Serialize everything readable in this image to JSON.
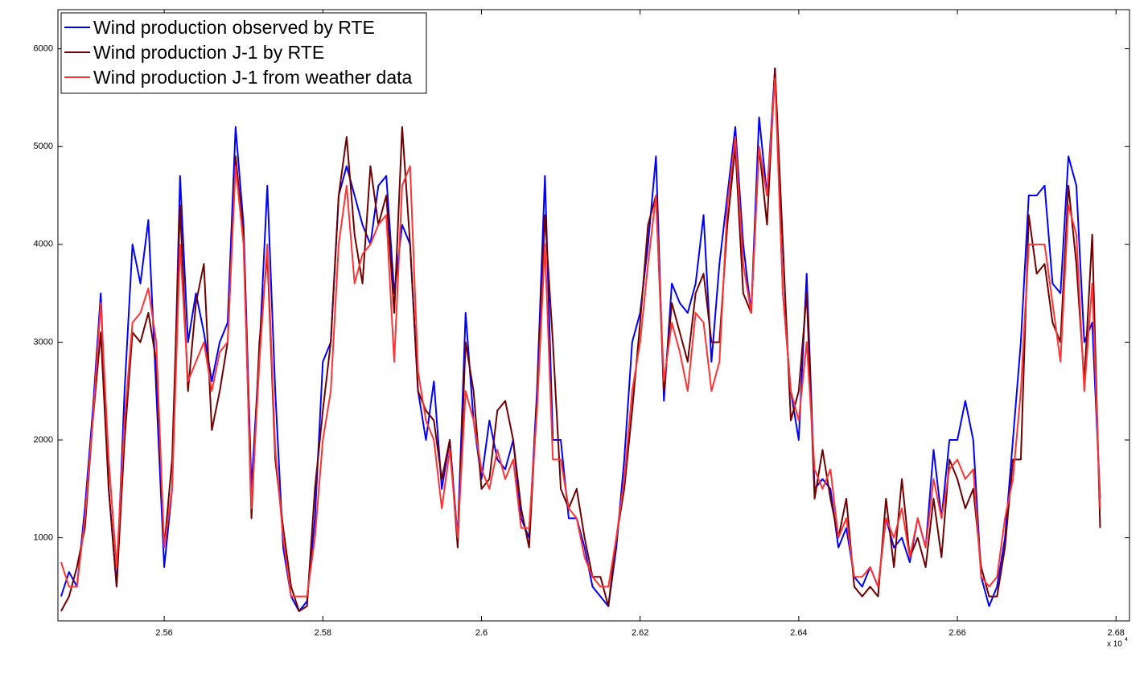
{
  "chart_data": {
    "type": "line",
    "x": [
      25470,
      25480,
      25490,
      25500,
      25510,
      25520,
      25530,
      25540,
      25550,
      25560,
      25570,
      25580,
      25590,
      25600,
      25610,
      25620,
      25630,
      25640,
      25650,
      25660,
      25670,
      25680,
      25690,
      25700,
      25710,
      25720,
      25730,
      25740,
      25750,
      25760,
      25770,
      25780,
      25790,
      25800,
      25810,
      25820,
      25830,
      25840,
      25850,
      25860,
      25870,
      25880,
      25890,
      25900,
      25910,
      25920,
      25930,
      25940,
      25950,
      25960,
      25970,
      25980,
      25990,
      26000,
      26010,
      26020,
      26030,
      26040,
      26050,
      26060,
      26070,
      26080,
      26090,
      26100,
      26110,
      26120,
      26130,
      26140,
      26150,
      26160,
      26170,
      26180,
      26190,
      26200,
      26210,
      26220,
      26230,
      26240,
      26250,
      26260,
      26270,
      26280,
      26290,
      26300,
      26310,
      26320,
      26330,
      26340,
      26350,
      26360,
      26370,
      26380,
      26390,
      26400,
      26410,
      26420,
      26430,
      26440,
      26450,
      26460,
      26470,
      26480,
      26490,
      26500,
      26510,
      26520,
      26530,
      26540,
      26550,
      26560,
      26570,
      26580,
      26590,
      26600,
      26610,
      26620,
      26630,
      26640,
      26650,
      26660,
      26670,
      26680,
      26690,
      26700,
      26710,
      26720,
      26730,
      26740,
      26750,
      26760,
      26770,
      26780
    ],
    "series": [
      {
        "name": "Wind production observed by RTE",
        "color": "#0000ff",
        "values": [
          400,
          650,
          500,
          1300,
          2300,
          3500,
          1500,
          500,
          2500,
          4000,
          3600,
          4250,
          2500,
          700,
          1500,
          4700,
          3000,
          3500,
          3100,
          2600,
          3000,
          3200,
          5200,
          4200,
          1500,
          2900,
          4600,
          2500,
          900,
          400,
          250,
          350,
          1200,
          2800,
          3000,
          4500,
          4800,
          4500,
          4200,
          4000,
          4600,
          4700,
          3500,
          4200,
          4000,
          2500,
          2000,
          2600,
          1500,
          2000,
          1000,
          3300,
          2200,
          1600,
          2200,
          1800,
          1700,
          2000,
          1200,
          1000,
          2500,
          4700,
          2000,
          2000,
          1200,
          1200,
          900,
          500,
          400,
          300,
          900,
          1800,
          3000,
          3300,
          4000,
          4900,
          2400,
          3600,
          3400,
          3300,
          3600,
          4300,
          2800,
          3800,
          4500,
          5200,
          4000,
          3300,
          5300,
          4500,
          5800,
          3500,
          2500,
          2000,
          3700,
          1500,
          1600,
          1500,
          900,
          1100,
          600,
          500,
          700,
          500,
          1200,
          900,
          1000,
          750,
          1200,
          900,
          1900,
          1200,
          2000,
          2000,
          2400,
          2000,
          600,
          300,
          500,
          1000,
          2000,
          3000,
          4500,
          4500,
          4600,
          3600,
          3500,
          4900,
          4600,
          3000,
          3200,
          1400
        ]
      },
      {
        "name": "Wind production J-1 by RTE",
        "color": "#700000",
        "values": [
          250,
          400,
          700,
          1100,
          2200,
          3100,
          1500,
          500,
          2000,
          3100,
          3000,
          3300,
          2800,
          900,
          1800,
          4400,
          2500,
          3400,
          3800,
          2100,
          2500,
          3000,
          4900,
          4100,
          1200,
          3000,
          3900,
          1800,
          1100,
          500,
          250,
          300,
          1500,
          2300,
          3000,
          4500,
          5100,
          4100,
          3600,
          4800,
          4200,
          4500,
          3300,
          5200,
          4000,
          2500,
          2300,
          2200,
          1600,
          2000,
          900,
          3000,
          2500,
          1500,
          1600,
          2300,
          2400,
          2000,
          1300,
          900,
          2400,
          4300,
          3000,
          1500,
          1300,
          1500,
          1000,
          600,
          600,
          300,
          1000,
          1500,
          2300,
          3200,
          4200,
          4500,
          2500,
          3400,
          3100,
          2800,
          3500,
          3700,
          3000,
          3000,
          4200,
          5000,
          3500,
          3300,
          5000,
          4200,
          5800,
          4000,
          2200,
          2500,
          3500,
          1400,
          1900,
          1400,
          1000,
          1400,
          500,
          400,
          500,
          400,
          1400,
          700,
          1600,
          800,
          1000,
          700,
          1400,
          800,
          1800,
          1600,
          1300,
          1500,
          700,
          400,
          400,
          900,
          1800,
          1800,
          4300,
          3700,
          3800,
          3200,
          3000,
          4600,
          3800,
          2600,
          4100,
          1100
        ]
      },
      {
        "name": "Wind production J-1 from weather data",
        "color": "#ff3333",
        "values": [
          750,
          500,
          500,
          1200,
          2200,
          3400,
          1800,
          700,
          2200,
          3200,
          3300,
          3550,
          3000,
          900,
          1500,
          4000,
          2600,
          2800,
          3000,
          2500,
          2900,
          3000,
          4800,
          4000,
          1300,
          2800,
          4000,
          1900,
          1000,
          400,
          400,
          400,
          1000,
          2000,
          2500,
          4000,
          4600,
          3600,
          3900,
          4000,
          4200,
          4300,
          2800,
          4600,
          4800,
          2700,
          2200,
          2000,
          1300,
          1900,
          1000,
          2500,
          2200,
          1700,
          1500,
          1900,
          1600,
          1800,
          1100,
          1100,
          2300,
          4000,
          1800,
          1800,
          1300,
          1200,
          800,
          600,
          500,
          500,
          1000,
          1600,
          2500,
          3000,
          3800,
          4500,
          2600,
          3200,
          2900,
          2500,
          3300,
          3200,
          2500,
          2800,
          4400,
          5100,
          3800,
          3300,
          5000,
          4500,
          5700,
          3500,
          2500,
          2200,
          3000,
          1700,
          1500,
          1700,
          1000,
          1200,
          600,
          600,
          700,
          500,
          1200,
          1000,
          1300,
          800,
          1200,
          900,
          1600,
          1200,
          1700,
          1800,
          1600,
          1700,
          600,
          500,
          600,
          1200,
          1600,
          2500,
          4000,
          4000,
          4000,
          3400,
          2800,
          4400,
          4100,
          2500,
          3600,
          1300
        ]
      }
    ],
    "xlim": [
      25466,
      26817
    ],
    "xticks": [
      {
        "value": 25600,
        "label": "2.56"
      },
      {
        "value": 25800,
        "label": "2.58"
      },
      {
        "value": 26000,
        "label": "2.6"
      },
      {
        "value": 26200,
        "label": "2.62"
      },
      {
        "value": 26400,
        "label": "2.64"
      },
      {
        "value": 26600,
        "label": "2.66"
      },
      {
        "value": 26800,
        "label": "2.68"
      }
    ],
    "x_multiplier": "x 10",
    "x_multiplier_exponent": "4",
    "ylim": [
      150,
      6400
    ],
    "yticks": [
      1000,
      2000,
      3000,
      4000,
      5000,
      6000
    ],
    "legend": "upper-left",
    "grid": false
  }
}
